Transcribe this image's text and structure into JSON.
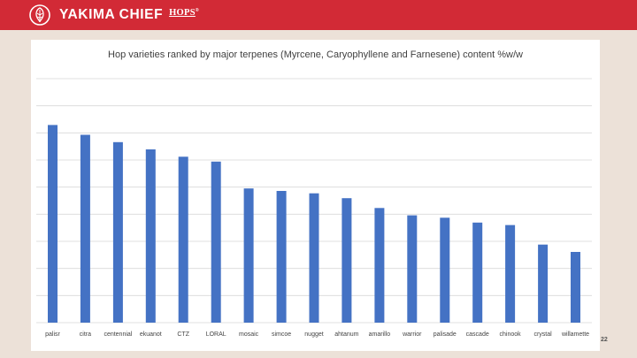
{
  "brand": {
    "name": "YAKIMA CHIEF",
    "suffix": "HOPS",
    "tm": "®"
  },
  "slide": {
    "page_number": "22"
  },
  "colors": {
    "header": "#d22a36",
    "bar": "#4472c4",
    "grid": "#d9d9d9"
  },
  "chart_data": {
    "type": "bar",
    "title": "Hop varieties ranked by major terpenes (Myrcene, Caryophyllene and Farnesene) content %w/w",
    "xlabel": "",
    "ylabel": "",
    "grid": true,
    "categories": [
      "palisr",
      "citra",
      "centennial",
      "ekuanot",
      "CTZ",
      "LORAL",
      "mosaic",
      "simcoe",
      "nugget",
      "ahtanum",
      "amarillo",
      "warrior",
      "palisade",
      "cascade",
      "chinook",
      "crystal",
      "willamette"
    ],
    "values": [
      8.1,
      7.7,
      7.4,
      7.1,
      6.8,
      6.6,
      5.5,
      5.4,
      5.3,
      5.1,
      4.7,
      4.4,
      4.3,
      4.1,
      4.0,
      3.2,
      2.9
    ],
    "ylim": [
      0,
      10.0
    ],
    "gridline_count": 9
  }
}
